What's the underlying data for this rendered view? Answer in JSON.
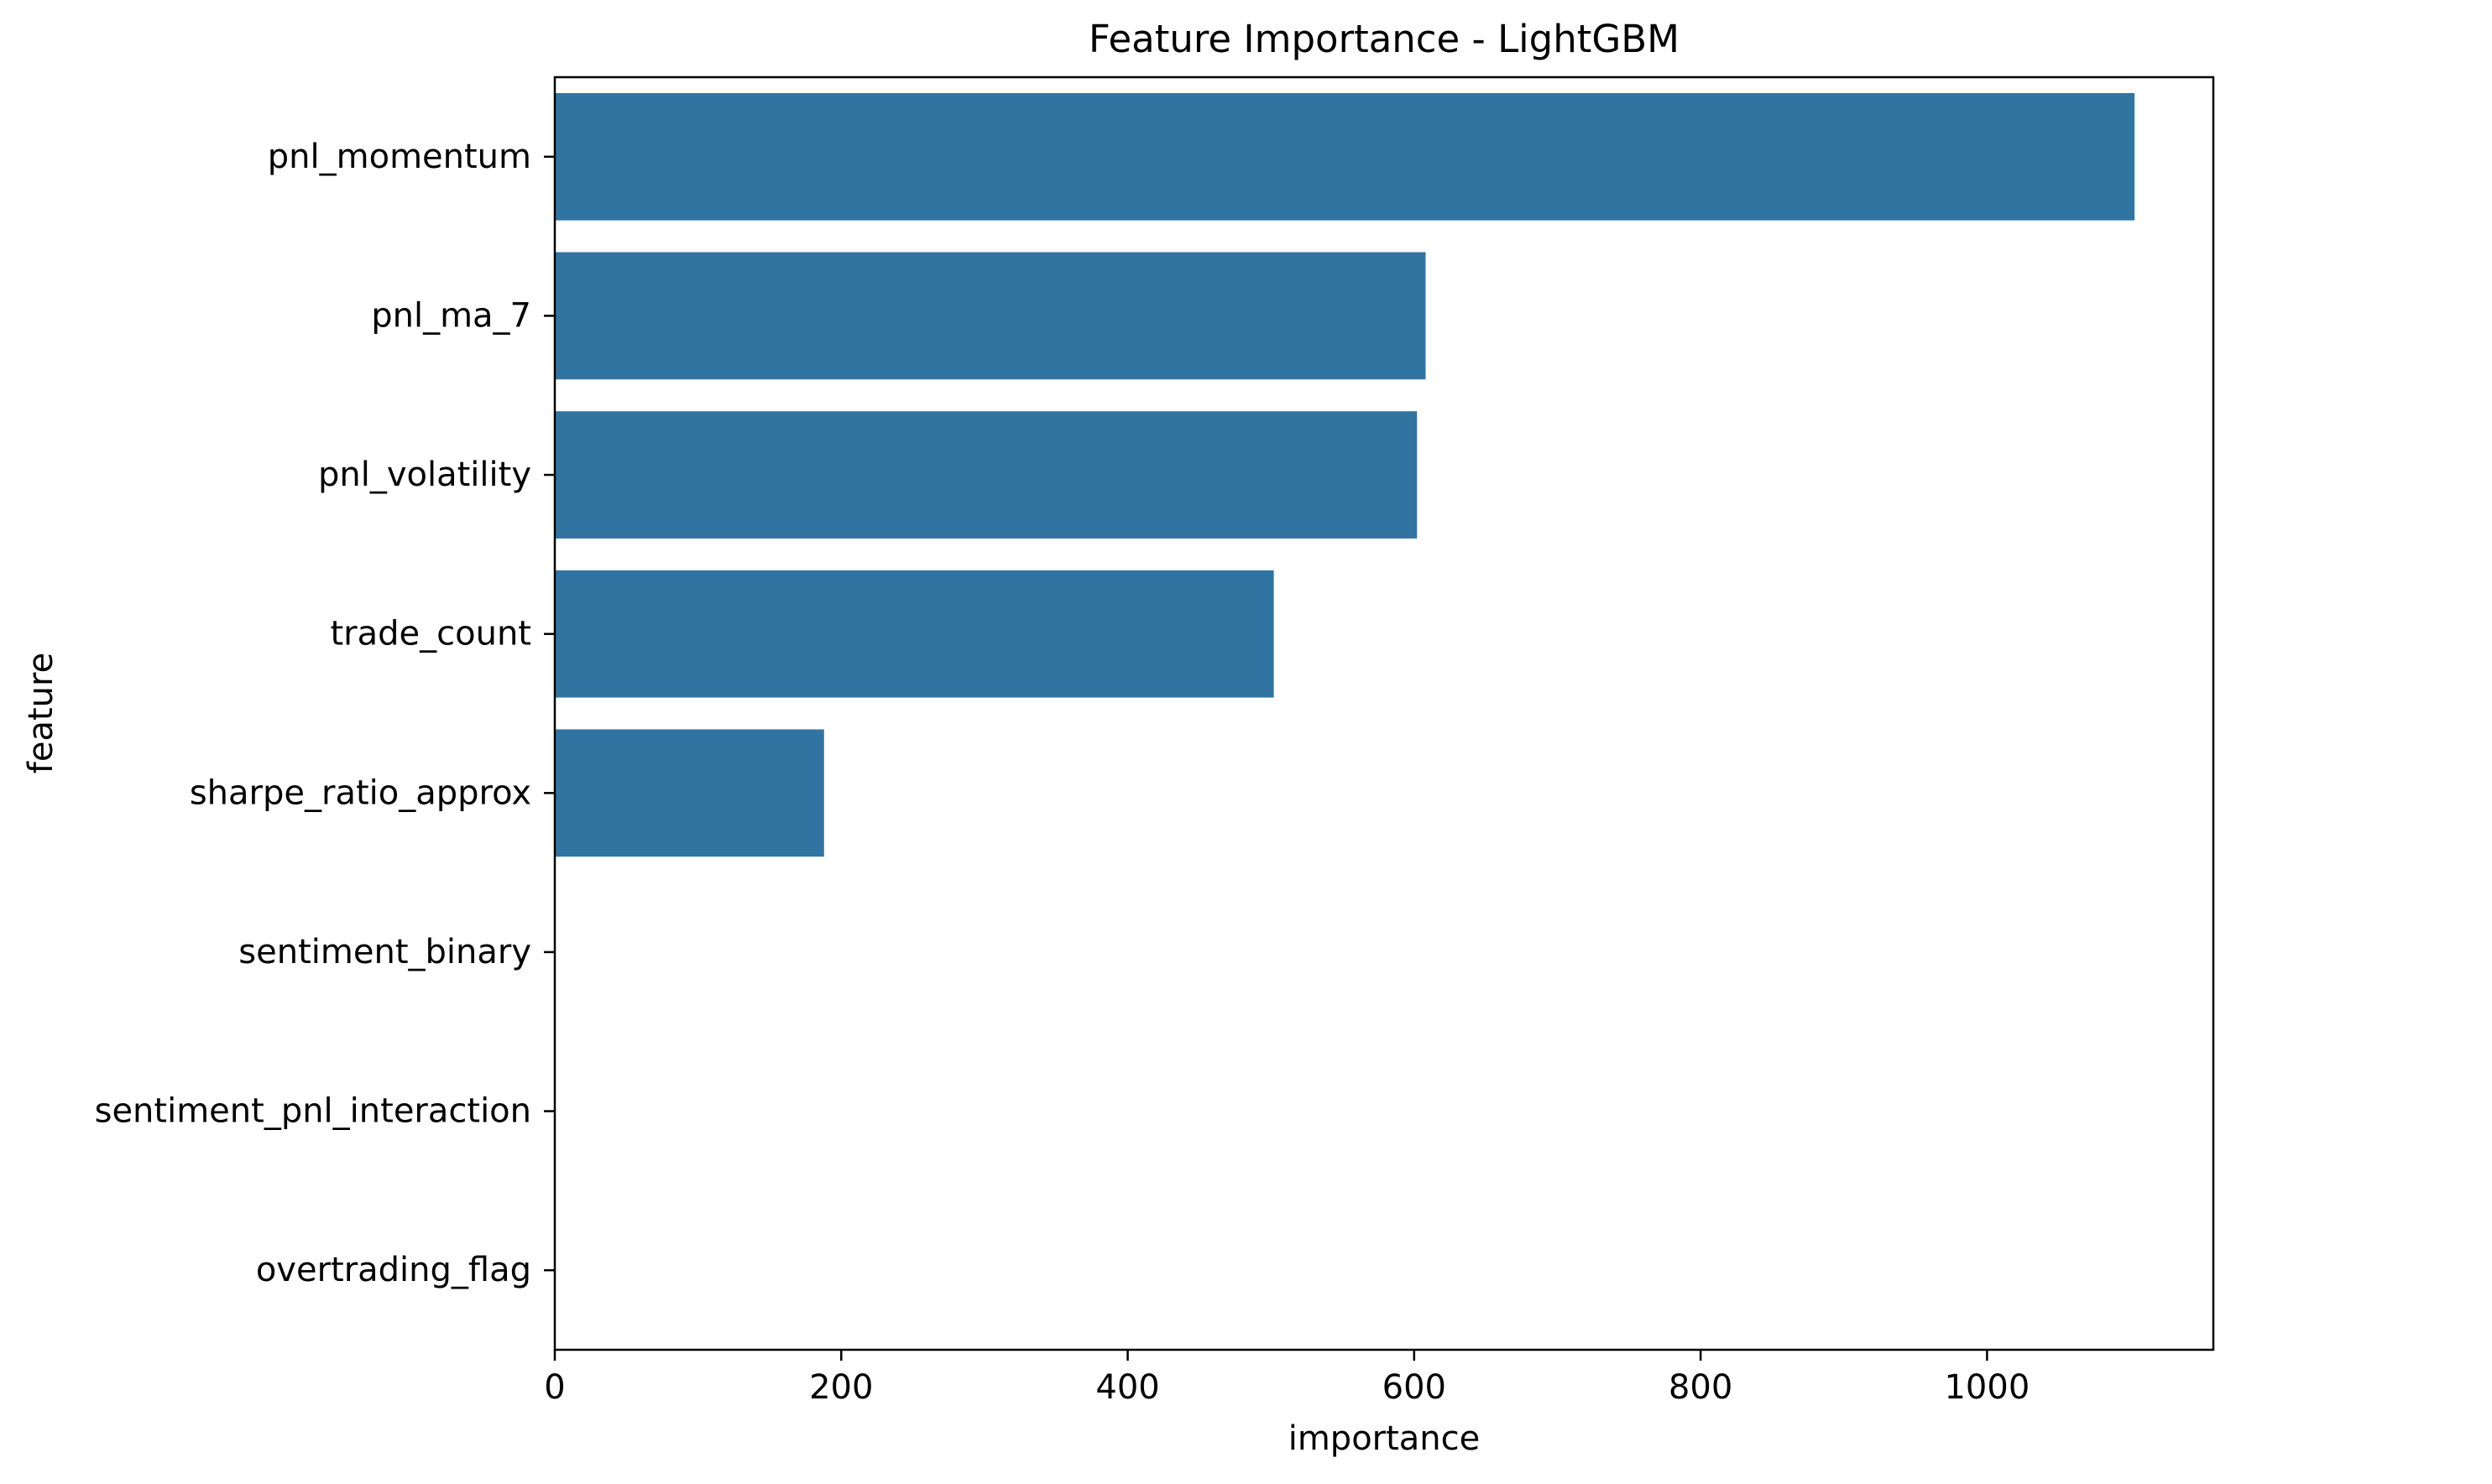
{
  "chart_data": {
    "type": "bar",
    "orientation": "horizontal",
    "title": "Feature Importance - LightGBM",
    "xlabel": "importance",
    "ylabel": "feature",
    "xlim": [
      0,
      1158
    ],
    "xticks": [
      0,
      200,
      400,
      600,
      800,
      1000
    ],
    "categories": [
      "pnl_momentum",
      "pnl_ma_7",
      "pnl_volatility",
      "trade_count",
      "sharpe_ratio_approx",
      "sentiment_binary",
      "sentiment_pnl_interaction",
      "overtrading_flag"
    ],
    "values": [
      1103,
      608,
      602,
      502,
      188,
      0,
      0,
      0
    ],
    "bar_color": "#3274a1",
    "grid": false,
    "legend": "none"
  }
}
